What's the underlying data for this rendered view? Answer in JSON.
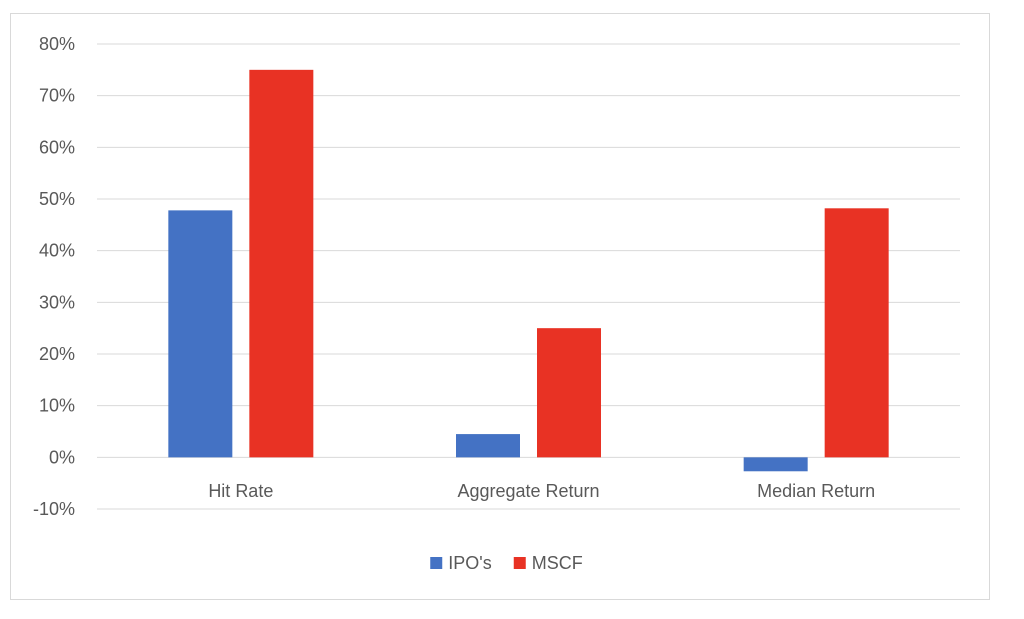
{
  "chart_data": {
    "type": "bar",
    "categories": [
      "Hit Rate",
      "Aggregate Return",
      "Median Return"
    ],
    "series": [
      {
        "name": "IPO's",
        "values": [
          0.478,
          0.045,
          -0.027
        ],
        "color": "#4472c4"
      },
      {
        "name": "MSCF",
        "values": [
          0.75,
          0.25,
          0.482
        ],
        "color": "#e83224"
      }
    ],
    "y_ticks": [
      "-10%",
      "0%",
      "10%",
      "20%",
      "30%",
      "40%",
      "50%",
      "60%",
      "70%",
      "80%"
    ],
    "ylim": [
      -0.1,
      0.8
    ],
    "grid": true,
    "legend_position": "bottom",
    "title": "",
    "xlabel": "",
    "ylabel": ""
  }
}
